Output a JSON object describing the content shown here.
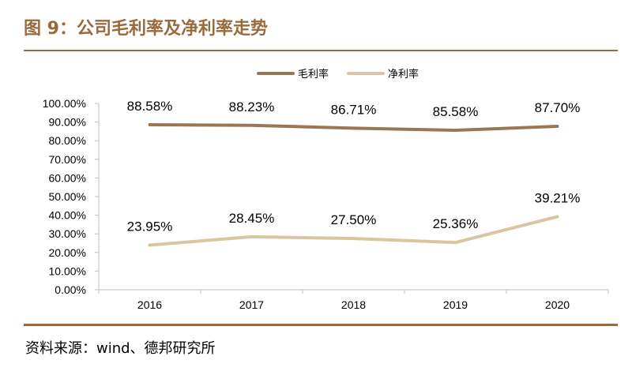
{
  "header": {
    "figure_title": "图 9：公司毛利率及净利率走势"
  },
  "source": "资料来源：wind、德邦研究所",
  "colors": {
    "brand": "#9A6A3C",
    "gross": "#9B7653",
    "net": "#D8C79E",
    "axis": "#BFBFBF"
  },
  "chart_data": {
    "type": "line",
    "title": "",
    "xlabel": "",
    "ylabel": "",
    "categories": [
      "2016",
      "2017",
      "2018",
      "2019",
      "2020"
    ],
    "ylim": [
      0,
      100
    ],
    "y_ticks": [
      "0.00%",
      "10.00%",
      "20.00%",
      "30.00%",
      "40.00%",
      "50.00%",
      "60.00%",
      "70.00%",
      "80.00%",
      "90.00%",
      "100.00%"
    ],
    "grid": false,
    "legend_position": "top-center",
    "series": [
      {
        "name": "毛利率",
        "values": [
          88.58,
          88.23,
          86.71,
          85.58,
          87.7
        ],
        "labels": [
          "88.58%",
          "88.23%",
          "86.71%",
          "85.58%",
          "87.70%"
        ],
        "color": "#9B7653"
      },
      {
        "name": "净利率",
        "values": [
          23.95,
          28.45,
          27.5,
          25.36,
          39.21
        ],
        "labels": [
          "23.95%",
          "28.45%",
          "27.50%",
          "25.36%",
          "39.21%"
        ],
        "color": "#D8C79E"
      }
    ]
  }
}
